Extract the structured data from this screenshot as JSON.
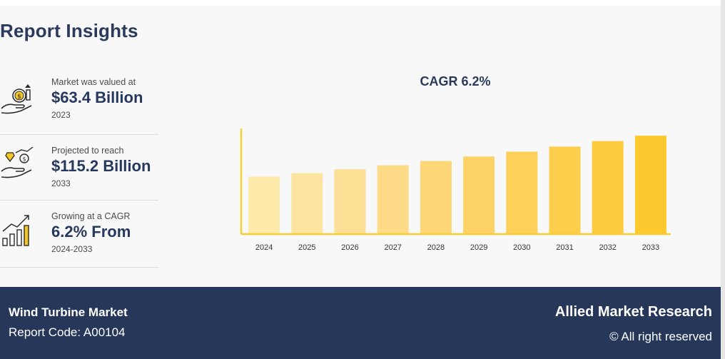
{
  "header": {
    "title": "Report Insights"
  },
  "stats": [
    {
      "label": "Market was valued at",
      "value": "$63.4 Billion",
      "sub": "2023",
      "icon": "money-hand-icon"
    },
    {
      "label": "Projected to reach",
      "value": "$115.2 Billion",
      "sub": "2033",
      "icon": "growth-hand-icon"
    },
    {
      "label": "Growing at a CAGR",
      "value": "6.2% From",
      "sub": "2024-2033",
      "icon": "bar-growth-icon"
    }
  ],
  "chart_data": {
    "type": "bar",
    "title": "CAGR 6.2%",
    "categories": [
      "2024",
      "2025",
      "2026",
      "2027",
      "2028",
      "2029",
      "2030",
      "2031",
      "2032",
      "2033"
    ],
    "values": [
      67.3,
      71.5,
      75.9,
      80.6,
      85.6,
      90.9,
      96.5,
      102.5,
      108.9,
      115.2
    ],
    "ylim": [
      0,
      122
    ],
    "grid": false,
    "colors": [
      "#fde9a9",
      "#fde4a0",
      "#fde095",
      "#fddb87",
      "#fdd778",
      "#fdd368",
      "#fdd05a",
      "#fdcd4c",
      "#fdcb40",
      "#fdc92f"
    ],
    "axis_color": "#f7cf35"
  },
  "footer": {
    "market": "Wind Turbine Market",
    "report_code": "Report Code: A00104",
    "brand": "Allied Market Research",
    "rights": "© All right reserved"
  }
}
